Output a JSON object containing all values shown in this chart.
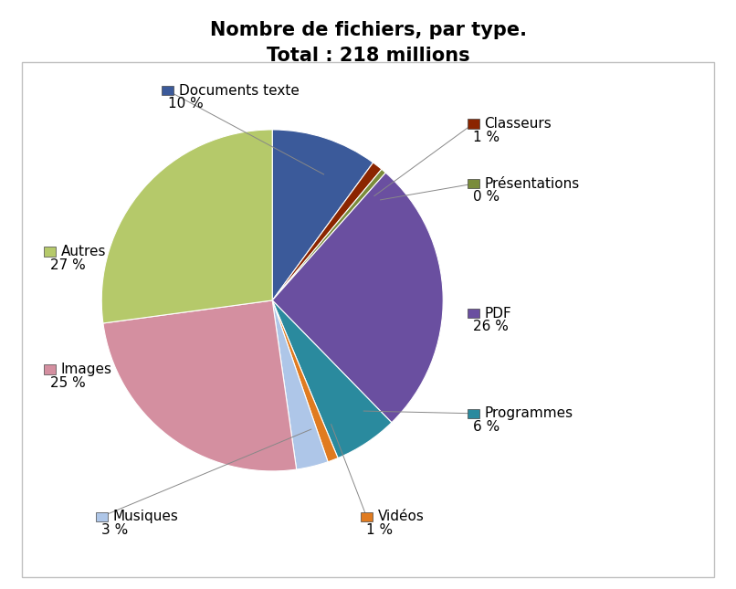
{
  "title": "Nombre de fichiers, par type.\nTotal : 218 millions",
  "labels": [
    "Documents texte",
    "Classeurs",
    "Présentations",
    "PDF",
    "Programmes",
    "Vidéos",
    "Musiques",
    "Images",
    "Autres"
  ],
  "values": [
    10,
    1,
    0.5,
    26,
    6,
    1,
    3,
    25,
    27
  ],
  "pct_labels": [
    "10 %",
    "1 %",
    "0 %",
    "26 %",
    "6 %",
    "1 %",
    "3 %",
    "25 %",
    "27 %"
  ],
  "colors": [
    "#3b5a9a",
    "#8b2500",
    "#7a8c3b",
    "#6a4fa0",
    "#2a8a9e",
    "#e07b20",
    "#aec6e8",
    "#d48fa0",
    "#b5c96a"
  ],
  "title_fontsize": 15,
  "label_fontsize": 11,
  "pct_fontsize": 11
}
